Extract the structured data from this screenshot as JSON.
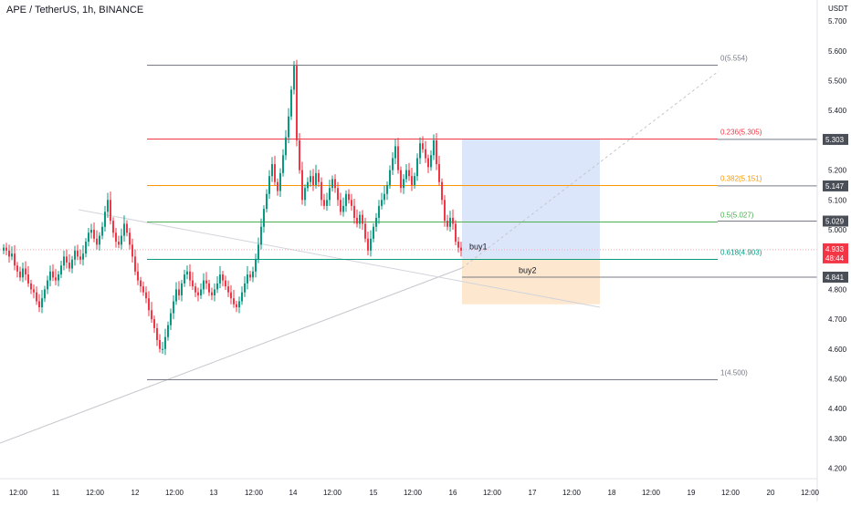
{
  "header": {
    "symbol_title": "APE / TetherUS, 1h, BINANCE",
    "currency": "USDT"
  },
  "price_axis": {
    "ticks": [
      "5.700",
      "5.600",
      "5.500",
      "5.400",
      "5.300",
      "5.200",
      "5.100",
      "5.000",
      "4.900",
      "4.800",
      "4.700",
      "4.600",
      "4.500",
      "4.400",
      "4.300",
      "4.200"
    ]
  },
  "time_axis": {
    "ticks": [
      "12:00",
      "11",
      "12:00",
      "12",
      "12:00",
      "13",
      "12:00",
      "14",
      "12:00",
      "15",
      "12:00",
      "16",
      "12:00",
      "17",
      "12:00",
      "18",
      "12:00",
      "19",
      "12:00",
      "20",
      "12:00"
    ]
  },
  "fibonacci": {
    "levels": [
      {
        "label": "0(5.554)",
        "price": 5.554,
        "color": "#787b86"
      },
      {
        "label": "0.236(5.305)",
        "price": 5.305,
        "color": "#f23645"
      },
      {
        "label": "0.382(5.151)",
        "price": 5.151,
        "color": "#ff9800"
      },
      {
        "label": "0.5(5.027)",
        "price": 5.027,
        "color": "#4caf50"
      },
      {
        "label": "0.618(4.903)",
        "price": 4.903,
        "color": "#089981"
      },
      {
        "label": "1(4.500)",
        "price": 4.5,
        "color": "#787b86"
      }
    ]
  },
  "annotations": {
    "buy1": "buy1",
    "buy2": "buy2"
  },
  "price_badges": [
    {
      "text": "5.303",
      "price": 5.303,
      "bg": "#4a4e57"
    },
    {
      "text": "5.147",
      "price": 5.147,
      "bg": "#4a4e57"
    },
    {
      "text": "5.029",
      "price": 5.029,
      "bg": "#4a4e57"
    },
    {
      "text": "4.841",
      "price": 4.841,
      "bg": "#4a4e57"
    }
  ],
  "last_price": {
    "price_text": "4.933",
    "countdown": "48:44",
    "price": 4.933,
    "bg": "#f23645"
  },
  "colors": {
    "up": "#089981",
    "down": "#f23645",
    "long_zone": "#dbe6fb",
    "short_zone": "#fde8cf",
    "grid_text": "#131722"
  },
  "chart_data": {
    "type": "candlestick",
    "title": "APE / TetherUS, 1h, BINANCE",
    "y_unit": "USDT",
    "ylim": [
      4.18,
      5.78
    ],
    "x_ticks": [
      "12:00",
      "11",
      "12:00",
      "12",
      "12:00",
      "13",
      "12:00",
      "14",
      "12:00",
      "15",
      "12:00",
      "16",
      "12:00",
      "17",
      "12:00",
      "18",
      "12:00",
      "19",
      "12:00",
      "20",
      "12:00"
    ],
    "grid": false,
    "closes": [
      4.94,
      4.93,
      4.91,
      4.92,
      4.88,
      4.86,
      4.84,
      4.87,
      4.85,
      4.82,
      4.8,
      4.79,
      4.76,
      4.74,
      4.77,
      4.8,
      4.83,
      4.86,
      4.84,
      4.83,
      4.85,
      4.88,
      4.91,
      4.89,
      4.87,
      4.9,
      4.93,
      4.91,
      4.9,
      4.92,
      4.96,
      4.99,
      5.0,
      4.97,
      4.95,
      4.98,
      5.01,
      5.06,
      5.1,
      5.03,
      4.99,
      4.96,
      4.95,
      4.98,
      5.02,
      4.99,
      4.95,
      4.91,
      4.86,
      4.83,
      4.81,
      4.79,
      4.77,
      4.73,
      4.7,
      4.67,
      4.63,
      4.6,
      4.6,
      4.64,
      4.68,
      4.72,
      4.76,
      4.8,
      4.78,
      4.82,
      4.85,
      4.86,
      4.83,
      4.81,
      4.79,
      4.78,
      4.8,
      4.83,
      4.82,
      4.79,
      4.78,
      4.8,
      4.82,
      4.85,
      4.83,
      4.81,
      4.79,
      4.77,
      4.75,
      4.74,
      4.76,
      4.79,
      4.82,
      4.85,
      4.84,
      4.86,
      4.9,
      4.95,
      5.01,
      5.07,
      5.12,
      5.18,
      5.22,
      5.16,
      5.13,
      5.19,
      5.25,
      5.31,
      5.38,
      5.47,
      5.55,
      5.3,
      5.2,
      5.1,
      5.14,
      5.16,
      5.18,
      5.15,
      5.19,
      5.16,
      5.1,
      5.08,
      5.1,
      5.14,
      5.17,
      5.14,
      5.1,
      5.06,
      5.08,
      5.12,
      5.1,
      5.08,
      5.04,
      5.02,
      5.05,
      5.02,
      4.97,
      4.93,
      4.97,
      5.01,
      5.04,
      5.08,
      5.1,
      5.12,
      5.15,
      5.2,
      5.24,
      5.28,
      5.2,
      5.14,
      5.17,
      5.2,
      5.18,
      5.15,
      5.18,
      5.24,
      5.29,
      5.27,
      5.24,
      5.21,
      5.25,
      5.3,
      5.22,
      5.16,
      5.1,
      5.03,
      5.01,
      5.04,
      5.02,
      4.96,
      4.94,
      4.93
    ]
  }
}
